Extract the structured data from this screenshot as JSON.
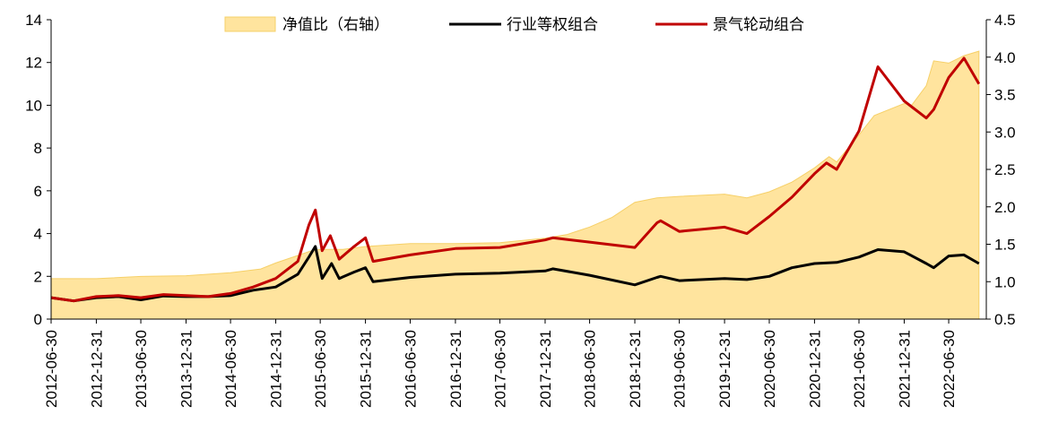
{
  "chart_data": {
    "type": "line",
    "title": "",
    "legend_placement": "top-center",
    "grid": false,
    "colors": {
      "ratio_fill": "#FFE49E",
      "ratio_stroke": "#F6D068",
      "equal_weight": "#000000",
      "rotation": "#C00000"
    },
    "x_ticks": [
      "2012-06-30",
      "2012-12-31",
      "2013-06-30",
      "2013-12-31",
      "2014-06-30",
      "2014-12-31",
      "2015-06-30",
      "2015-12-31",
      "2016-06-30",
      "2016-12-31",
      "2017-06-30",
      "2017-12-31",
      "2018-06-30",
      "2018-12-31",
      "2019-06-30",
      "2019-12-31",
      "2020-06-30",
      "2020-12-31",
      "2021-06-30",
      "2021-12-31",
      "2022-06-30"
    ],
    "y_left": {
      "min": 0,
      "max": 14,
      "ticks": [
        0,
        2,
        4,
        6,
        8,
        10,
        12,
        14
      ]
    },
    "y_right": {
      "min": 0.5,
      "max": 4.5,
      "ticks": [
        "0.5",
        "1.0",
        "1.5",
        "2.0",
        "2.5",
        "3.0",
        "3.5",
        "4.0",
        "4.5"
      ]
    },
    "series": [
      {
        "name": "净值比（右轴）",
        "axis": "right",
        "kind": "area",
        "points": [
          [
            "2012-06-30",
            1.04
          ],
          [
            "2012-12-31",
            1.04
          ],
          [
            "2013-06-30",
            1.07
          ],
          [
            "2013-12-31",
            1.08
          ],
          [
            "2014-06-30",
            1.12
          ],
          [
            "2014-10-31",
            1.17
          ],
          [
            "2014-12-31",
            1.25
          ],
          [
            "2015-03-31",
            1.35
          ],
          [
            "2015-05-31",
            1.42
          ],
          [
            "2015-06-30",
            1.43
          ],
          [
            "2015-09-30",
            1.43
          ],
          [
            "2015-12-31",
            1.47
          ],
          [
            "2016-06-30",
            1.51
          ],
          [
            "2016-12-31",
            1.51
          ],
          [
            "2017-06-30",
            1.52
          ],
          [
            "2017-12-31",
            1.58
          ],
          [
            "2018-03-31",
            1.63
          ],
          [
            "2018-06-30",
            1.73
          ],
          [
            "2018-09-30",
            1.86
          ],
          [
            "2018-12-31",
            2.06
          ],
          [
            "2019-03-31",
            2.12
          ],
          [
            "2019-06-30",
            2.14
          ],
          [
            "2019-12-31",
            2.17
          ],
          [
            "2020-03-31",
            2.12
          ],
          [
            "2020-06-30",
            2.2
          ],
          [
            "2020-09-30",
            2.33
          ],
          [
            "2020-12-31",
            2.52
          ],
          [
            "2021-02-28",
            2.67
          ],
          [
            "2021-03-31",
            2.6
          ],
          [
            "2021-06-30",
            2.96
          ],
          [
            "2021-08-31",
            3.22
          ],
          [
            "2021-12-31",
            3.38
          ],
          [
            "2022-01-31",
            3.36
          ],
          [
            "2022-03-31",
            3.62
          ],
          [
            "2022-04-30",
            3.95
          ],
          [
            "2022-06-30",
            3.92
          ],
          [
            "2022-08-31",
            4.02
          ],
          [
            "2022-10-31",
            4.08
          ]
        ]
      },
      {
        "name": "行业等权组合",
        "axis": "left",
        "kind": "line",
        "points": [
          [
            "2012-06-30",
            1.0
          ],
          [
            "2012-09-30",
            0.85
          ],
          [
            "2012-12-31",
            1.0
          ],
          [
            "2013-03-31",
            1.05
          ],
          [
            "2013-06-30",
            0.9
          ],
          [
            "2013-09-30",
            1.08
          ],
          [
            "2013-12-31",
            1.05
          ],
          [
            "2014-03-31",
            1.05
          ],
          [
            "2014-06-30",
            1.1
          ],
          [
            "2014-09-30",
            1.35
          ],
          [
            "2014-12-31",
            1.5
          ],
          [
            "2015-03-31",
            2.1
          ],
          [
            "2015-05-15",
            2.9
          ],
          [
            "2015-06-10",
            3.4
          ],
          [
            "2015-07-08",
            1.9
          ],
          [
            "2015-08-15",
            2.6
          ],
          [
            "2015-09-15",
            1.9
          ],
          [
            "2015-11-15",
            2.2
          ],
          [
            "2015-12-31",
            2.4
          ],
          [
            "2016-01-31",
            1.75
          ],
          [
            "2016-06-30",
            1.95
          ],
          [
            "2016-12-31",
            2.1
          ],
          [
            "2017-06-30",
            2.15
          ],
          [
            "2017-12-31",
            2.25
          ],
          [
            "2018-01-31",
            2.35
          ],
          [
            "2018-06-30",
            2.05
          ],
          [
            "2018-12-31",
            1.6
          ],
          [
            "2019-03-31",
            1.95
          ],
          [
            "2019-04-15",
            2.0
          ],
          [
            "2019-06-30",
            1.8
          ],
          [
            "2019-12-31",
            1.9
          ],
          [
            "2020-03-31",
            1.85
          ],
          [
            "2020-06-30",
            2.0
          ],
          [
            "2020-09-30",
            2.4
          ],
          [
            "2020-12-31",
            2.6
          ],
          [
            "2021-03-31",
            2.65
          ],
          [
            "2021-06-30",
            2.9
          ],
          [
            "2021-09-15",
            3.25
          ],
          [
            "2021-12-31",
            3.15
          ],
          [
            "2022-03-31",
            2.6
          ],
          [
            "2022-04-30",
            2.4
          ],
          [
            "2022-06-30",
            2.95
          ],
          [
            "2022-08-31",
            3.0
          ],
          [
            "2022-10-31",
            2.6
          ]
        ]
      },
      {
        "name": "景气轮动组合",
        "axis": "left",
        "kind": "line",
        "points": [
          [
            "2012-06-30",
            1.0
          ],
          [
            "2012-09-30",
            0.85
          ],
          [
            "2012-12-31",
            1.05
          ],
          [
            "2013-03-31",
            1.1
          ],
          [
            "2013-06-30",
            1.0
          ],
          [
            "2013-09-30",
            1.15
          ],
          [
            "2013-12-31",
            1.1
          ],
          [
            "2014-03-31",
            1.05
          ],
          [
            "2014-06-30",
            1.2
          ],
          [
            "2014-09-30",
            1.5
          ],
          [
            "2014-12-31",
            1.9
          ],
          [
            "2015-03-31",
            2.7
          ],
          [
            "2015-05-15",
            4.4
          ],
          [
            "2015-06-10",
            5.1
          ],
          [
            "2015-07-08",
            3.2
          ],
          [
            "2015-08-10",
            3.9
          ],
          [
            "2015-09-15",
            2.8
          ],
          [
            "2015-11-15",
            3.4
          ],
          [
            "2015-12-31",
            3.8
          ],
          [
            "2016-01-31",
            2.7
          ],
          [
            "2016-06-30",
            3.0
          ],
          [
            "2016-12-31",
            3.3
          ],
          [
            "2017-06-30",
            3.35
          ],
          [
            "2017-12-31",
            3.7
          ],
          [
            "2018-01-31",
            3.8
          ],
          [
            "2018-06-30",
            3.6
          ],
          [
            "2018-12-31",
            3.35
          ],
          [
            "2019-03-31",
            4.5
          ],
          [
            "2019-04-15",
            4.6
          ],
          [
            "2019-06-30",
            4.1
          ],
          [
            "2019-12-31",
            4.3
          ],
          [
            "2020-03-31",
            4.0
          ],
          [
            "2020-06-30",
            4.8
          ],
          [
            "2020-09-30",
            5.7
          ],
          [
            "2020-12-31",
            6.8
          ],
          [
            "2021-02-18",
            7.3
          ],
          [
            "2021-03-31",
            7.0
          ],
          [
            "2021-06-30",
            8.8
          ],
          [
            "2021-09-15",
            11.8
          ],
          [
            "2021-12-31",
            10.2
          ],
          [
            "2022-03-31",
            9.4
          ],
          [
            "2022-04-30",
            9.8
          ],
          [
            "2022-06-30",
            11.3
          ],
          [
            "2022-08-31",
            12.2
          ],
          [
            "2022-10-31",
            11.0
          ]
        ]
      }
    ]
  }
}
